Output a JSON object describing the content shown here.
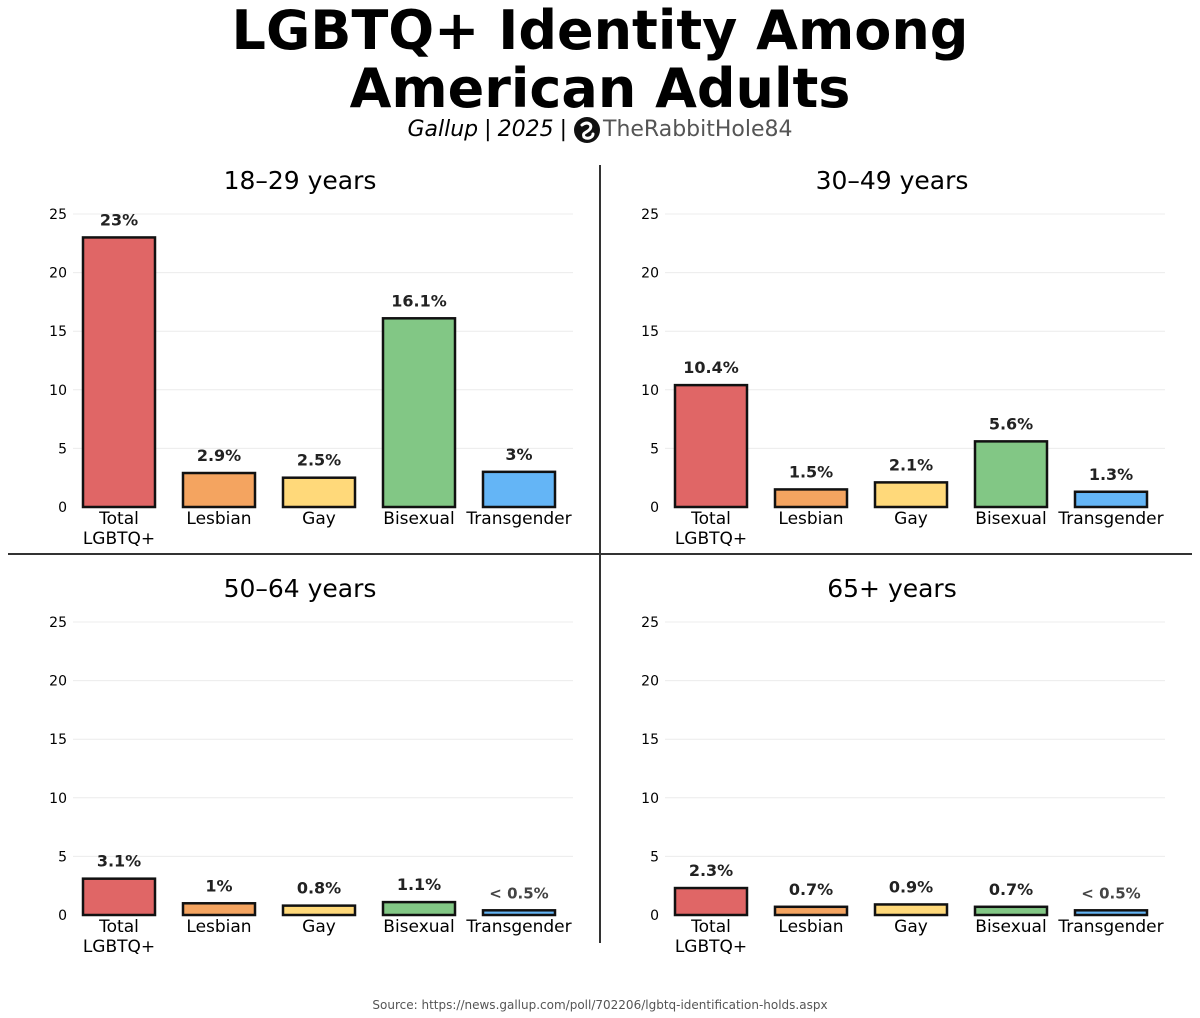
{
  "header": {
    "title_line1": "LGBTQ+ Identity Among",
    "title_line2": "American Adults",
    "subtitle_source": "Gallup",
    "subtitle_year": "2025",
    "subtitle_sep": "|",
    "brand_name": "TheRabbitHole84",
    "brand_icon": "rabbit-hole-logo-icon"
  },
  "footer": {
    "source": "Source: https://news.gallup.com/poll/702206/lgbtq-identification-holds.aspx"
  },
  "colors": {
    "Total LGBTQ+": "#e06666",
    "Lesbian": "#f4a460",
    "Gay": "#ffd97a",
    "Bisexual": "#82c785",
    "Transgender": "#64b5f6"
  },
  "chart_data": [
    {
      "type": "bar",
      "title": "18–29 years",
      "categories": [
        "Total\nLGBTQ+",
        "Lesbian",
        "Gay",
        "Bisexual",
        "Transgender"
      ],
      "values": [
        23,
        2.9,
        2.5,
        16.1,
        3
      ],
      "labels": [
        "23%",
        "2.9%",
        "2.5%",
        "16.1%",
        "3%"
      ],
      "ylim": [
        0,
        25
      ],
      "yticks": [
        0,
        5,
        10,
        15,
        20,
        25
      ],
      "grid": true
    },
    {
      "type": "bar",
      "title": "30–49 years",
      "categories": [
        "Total\nLGBTQ+",
        "Lesbian",
        "Gay",
        "Bisexual",
        "Transgender"
      ],
      "values": [
        10.4,
        1.5,
        2.1,
        5.6,
        1.3
      ],
      "labels": [
        "10.4%",
        "1.5%",
        "2.1%",
        "5.6%",
        "1.3%"
      ],
      "ylim": [
        0,
        25
      ],
      "yticks": [
        0,
        5,
        10,
        15,
        20,
        25
      ],
      "grid": true
    },
    {
      "type": "bar",
      "title": "50–64 years",
      "categories": [
        "Total\nLGBTQ+",
        "Lesbian",
        "Gay",
        "Bisexual",
        "Transgender"
      ],
      "values": [
        3.1,
        1,
        0.8,
        1.1,
        0.4
      ],
      "labels": [
        "3.1%",
        "1%",
        "0.8%",
        "1.1%",
        "< 0.5%"
      ],
      "ylim": [
        0,
        25
      ],
      "yticks": [
        0,
        5,
        10,
        15,
        20,
        25
      ],
      "grid": true
    },
    {
      "type": "bar",
      "title": "65+ years",
      "categories": [
        "Total\nLGBTQ+",
        "Lesbian",
        "Gay",
        "Bisexual",
        "Transgender"
      ],
      "values": [
        2.3,
        0.7,
        0.9,
        0.7,
        0.4
      ],
      "labels": [
        "2.3%",
        "0.7%",
        "0.9%",
        "0.7%",
        "< 0.5%"
      ],
      "ylim": [
        0,
        25
      ],
      "yticks": [
        0,
        5,
        10,
        15,
        20,
        25
      ],
      "grid": true
    }
  ]
}
